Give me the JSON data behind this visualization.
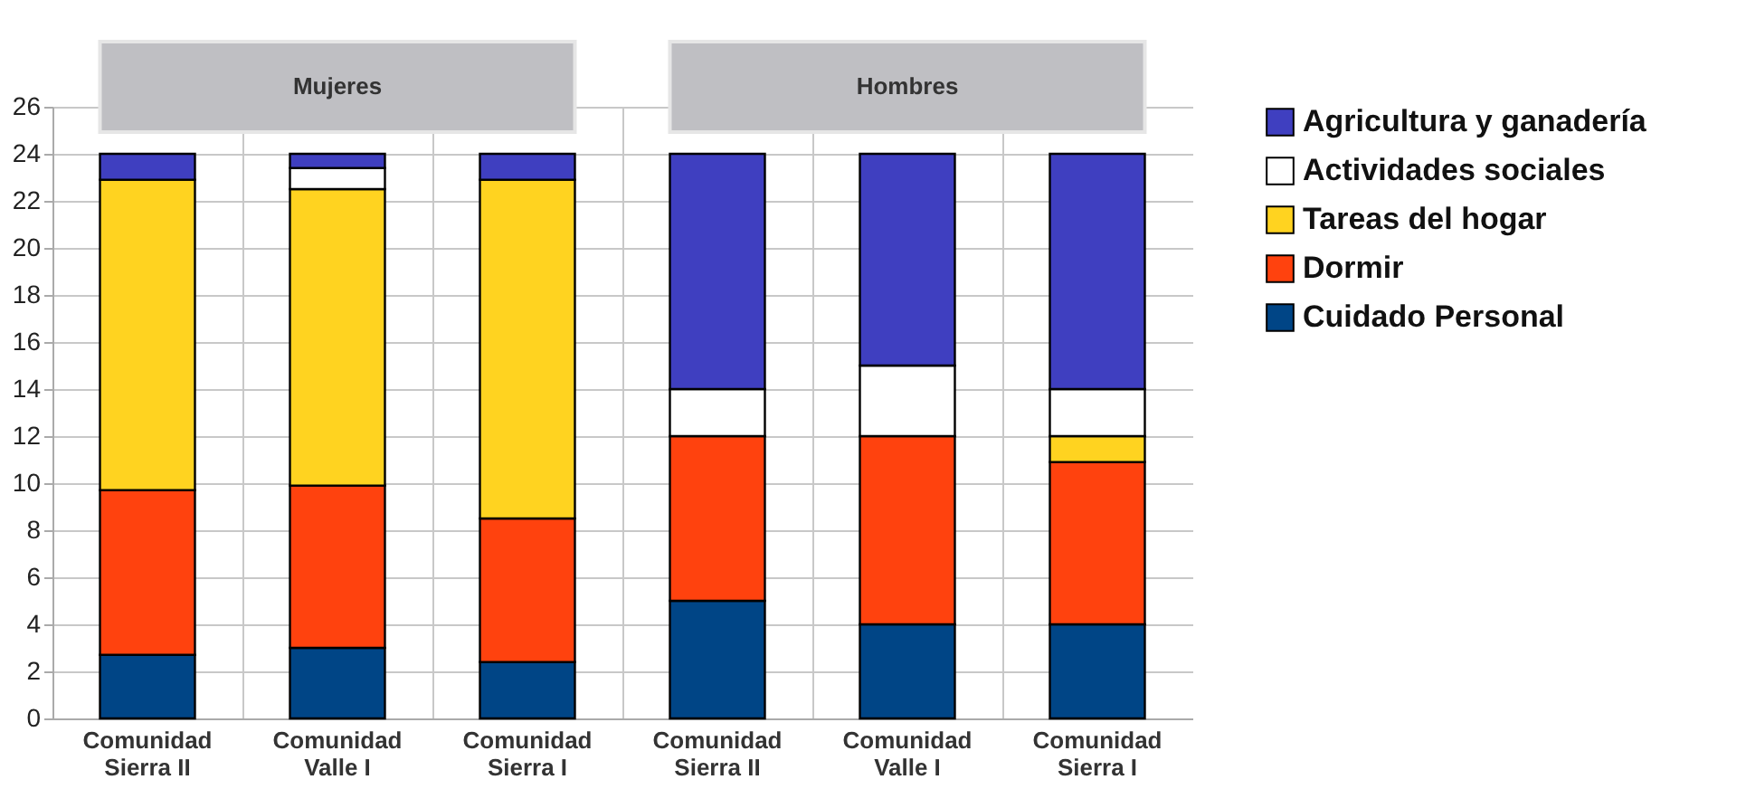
{
  "chart_data": {
    "type": "bar",
    "stacked": true,
    "categories": [
      "Comunidad Sierra II",
      "Comunidad Valle I",
      "Comunidad Sierra I",
      "Comunidad Sierra II",
      "Comunidad Valle I",
      "Comunidad Sierra I"
    ],
    "series": [
      {
        "name": "Cuidado Personal",
        "color": "#004586",
        "values": [
          2.7,
          3.0,
          2.4,
          5,
          4,
          4
        ]
      },
      {
        "name": "Dormir",
        "color": "#ff420e",
        "values": [
          7.0,
          6.9,
          6.1,
          7,
          8,
          6.9
        ]
      },
      {
        "name": "Tareas del hogar",
        "color": "#ffd320",
        "values": [
          13.2,
          12.6,
          14.4,
          null,
          null,
          1.1
        ]
      },
      {
        "name": "Actividades sociales",
        "color": "#ffffff",
        "values": [
          null,
          0.9,
          null,
          2,
          3,
          2
        ]
      },
      {
        "name": "Agricultura y ganadería",
        "color": "#3f3fc0",
        "values": [
          1.1,
          0.6,
          1.1,
          10,
          9,
          10
        ]
      }
    ],
    "ylim": [
      0,
      26
    ],
    "yticks": [
      0,
      2,
      4,
      6,
      8,
      10,
      12,
      14,
      16,
      18,
      20,
      22,
      24,
      26
    ],
    "grid": true,
    "legend": "right",
    "annotations": [
      "Mujeres",
      "Hombres"
    ]
  }
}
